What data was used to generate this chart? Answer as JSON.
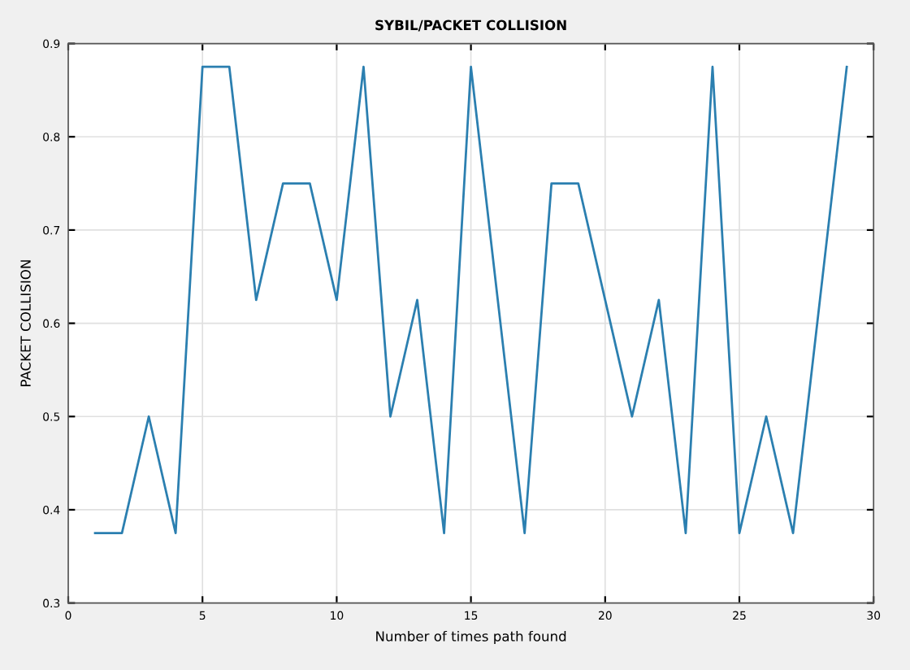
{
  "chart_data": {
    "type": "line",
    "title": "SYBIL/PACKET COLLISION",
    "xlabel": "Number of times path found",
    "ylabel": "PACKET COLLISION",
    "x": [
      1,
      2,
      3,
      4,
      5,
      6,
      7,
      8,
      9,
      10,
      11,
      12,
      13,
      14,
      15,
      16,
      17,
      18,
      19,
      20,
      21,
      22,
      23,
      24,
      25,
      26,
      27,
      28,
      29
    ],
    "series": [
      {
        "color": "#2b7fb0",
        "values": [
          0.375,
          0.375,
          0.5,
          0.375,
          0.875,
          0.875,
          0.625,
          0.75,
          0.75,
          0.625,
          0.875,
          0.5,
          0.625,
          0.375,
          0.875,
          0.625,
          0.375,
          0.75,
          0.75,
          0.625,
          0.5,
          0.625,
          0.375,
          0.875,
          0.375,
          0.5,
          0.375,
          0.625,
          0.875
        ]
      }
    ],
    "xlim": [
      0,
      30
    ],
    "xticks": [
      0,
      5,
      10,
      15,
      20,
      25,
      30
    ],
    "ylim": [
      0.3,
      0.9
    ],
    "yticks": [
      0.3,
      0.4,
      0.5,
      0.6,
      0.7,
      0.8,
      0.9
    ],
    "grid": true,
    "marker": "none",
    "line_style": "solid"
  }
}
